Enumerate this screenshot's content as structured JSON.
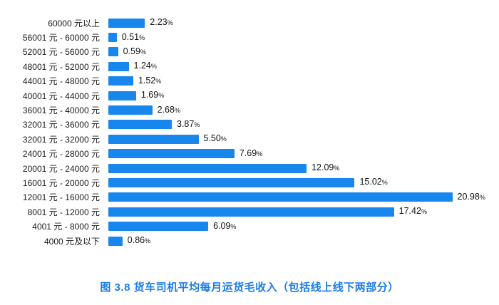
{
  "caption": {
    "text": "图 3.8  货车司机平均每月运货毛收入（包括线上线下两部分）",
    "color": "#1a7ce8"
  },
  "chart_data": {
    "type": "bar",
    "orientation": "horizontal",
    "title": "货车司机平均每月运货毛收入（包括线上线下两部分）",
    "bar_color": "#1787ee",
    "value_suffix": "%",
    "xlim": [
      0,
      22
    ],
    "grid": false,
    "legend": "none",
    "categories": [
      "60000 元以上",
      "56001 元 - 60000 元",
      "52001 元 - 56000 元",
      "48001 元 - 52000 元",
      "44001 元 - 48000 元",
      "40001 元 - 44000 元",
      "36001 元 - 40000 元",
      "32001 元 - 36000 元",
      "32001 元 - 32000 元",
      "24001 元 - 28000 元",
      "20001 元 - 24000 元",
      "16001 元 - 20000 元",
      "12001 元 - 16000 元",
      "8001 元 - 12000 元",
      "4001 元 - 8000 元",
      "4000 元及以下"
    ],
    "values": [
      2.23,
      0.51,
      0.59,
      1.24,
      1.52,
      1.69,
      2.68,
      3.87,
      5.5,
      7.69,
      12.09,
      15.02,
      20.98,
      17.42,
      6.09,
      0.86
    ],
    "value_labels": [
      "2.23",
      "0.51",
      "0.59",
      "1.24",
      "1.52",
      "1.69",
      "2.68",
      "3.87",
      "5.50",
      "7.69",
      "12.09",
      "15.02",
      "20.98",
      "17.42",
      "6.09",
      "0.86"
    ]
  }
}
